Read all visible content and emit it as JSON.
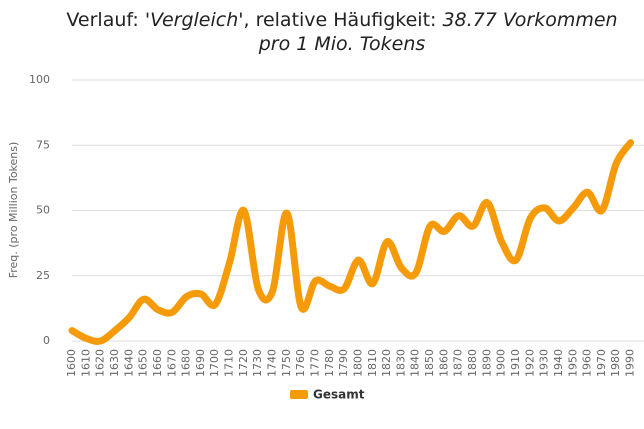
{
  "chart_data": {
    "type": "line",
    "title": {
      "prefix": "Verlauf:",
      "term": "'Vergleich'",
      "middle": ", relative Häufigkeit:",
      "frequency": "38.77 Vorkommen pro 1 Mio. Tokens"
    },
    "y_label": "Freq. (pro Million Tokens)",
    "x": [
      1600,
      1610,
      1620,
      1630,
      1640,
      1650,
      1660,
      1670,
      1680,
      1690,
      1700,
      1710,
      1720,
      1730,
      1740,
      1750,
      1760,
      1770,
      1780,
      1790,
      1800,
      1810,
      1820,
      1830,
      1840,
      1850,
      1860,
      1870,
      1880,
      1890,
      1900,
      1910,
      1920,
      1930,
      1940,
      1950,
      1960,
      1970,
      1980,
      1990
    ],
    "series": [
      {
        "name": "Gesamt",
        "color": "#f59b0a",
        "values": [
          4,
          1,
          0,
          4,
          9,
          16,
          12,
          11,
          17,
          18,
          14,
          30,
          50,
          20,
          19,
          49,
          13,
          23,
          21,
          20,
          31,
          22,
          38,
          28,
          26,
          44,
          42,
          48,
          44,
          53,
          38,
          31,
          47,
          51,
          46,
          51,
          57,
          50,
          68,
          76
        ]
      }
    ],
    "xlim": [
      1600,
      1998
    ],
    "xticks": [
      1600,
      1610,
      1620,
      1630,
      1640,
      1650,
      1660,
      1670,
      1680,
      1690,
      1700,
      1710,
      1720,
      1730,
      1740,
      1750,
      1760,
      1770,
      1780,
      1790,
      1800,
      1810,
      1820,
      1830,
      1840,
      1850,
      1860,
      1870,
      1880,
      1890,
      1900,
      1910,
      1920,
      1930,
      1940,
      1950,
      1960,
      1970,
      1980,
      1990
    ],
    "ylim": [
      0,
      100
    ],
    "yticks": [
      0,
      25,
      50,
      75,
      100
    ],
    "grid": true,
    "legend": "bottom"
  }
}
